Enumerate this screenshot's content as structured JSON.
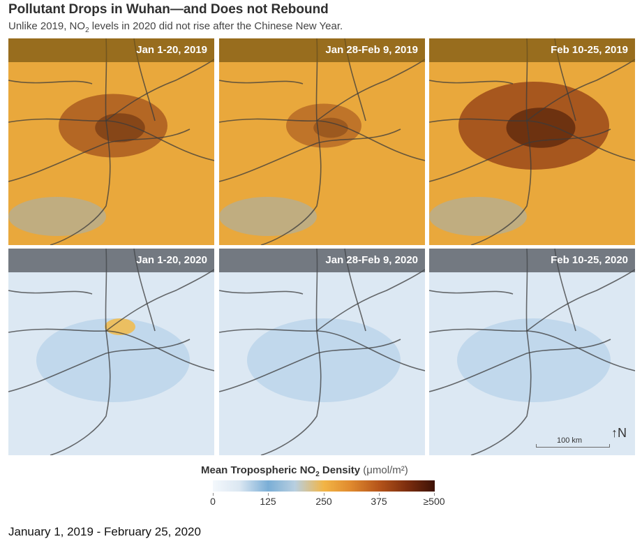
{
  "title": "Pollutant Drops in Wuhan—and Does not Rebound",
  "subtitle": {
    "before": "Unlike 2019, NO",
    "sub": "2",
    "after": " levels in 2020 did not rise after the Chinese New Year."
  },
  "panels": [
    {
      "label": "Jan 1-20, 2019",
      "year": "2019",
      "intensity": 0.65
    },
    {
      "label": "Jan 28-Feb 9, 2019",
      "year": "2019",
      "intensity": 0.45
    },
    {
      "label": "Feb 10-25, 2019",
      "year": "2019",
      "intensity": 0.9
    },
    {
      "label": "Jan 1-20, 2020",
      "year": "2020",
      "intensity": 0.35
    },
    {
      "label": "Jan 28-Feb 9, 2020",
      "year": "2020",
      "intensity": 0.15
    },
    {
      "label": "Feb 10-25, 2020",
      "year": "2020",
      "intensity": 0.15
    }
  ],
  "legend": {
    "title_before": "Mean Tropospheric NO",
    "title_sub": "2",
    "title_after": " Density",
    "unit": "(μmol/m²)",
    "ticks": [
      "0",
      "125",
      "250",
      "375",
      "≥500"
    ]
  },
  "scale_label": "100 km",
  "north_symbol": "↑N",
  "caption": "January 1, 2019 - February 25, 2020",
  "colors": {
    "orange_base": "#e9a83c",
    "orange_dark": "#8a3412",
    "blue_base": "#dce8f3",
    "blue_mid": "#8fb9df",
    "road": "#3b3b3b"
  }
}
